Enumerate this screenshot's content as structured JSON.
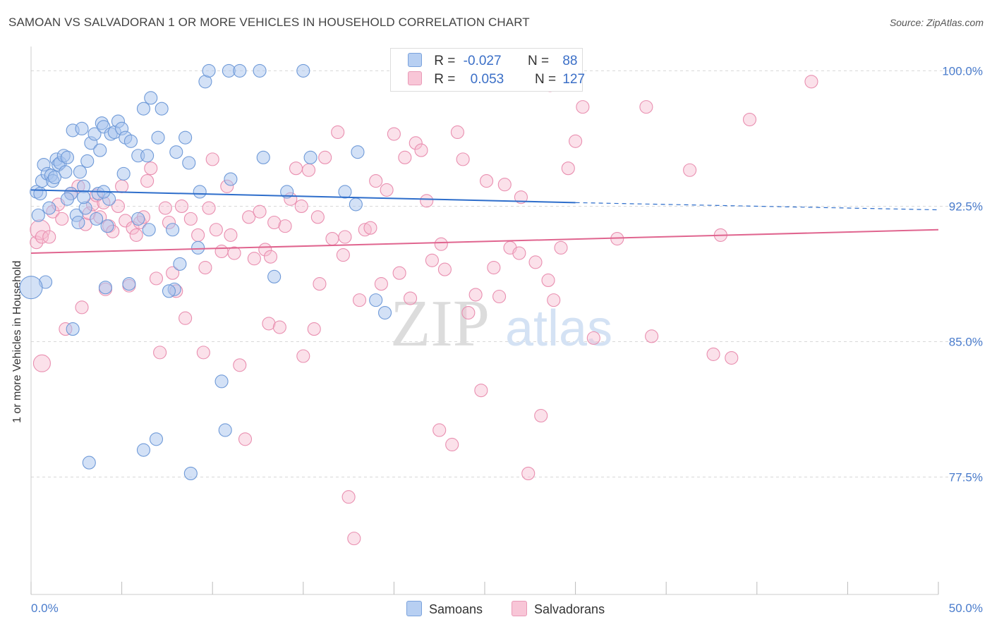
{
  "header": {
    "title": "SAMOAN VS SALVADORAN 1 OR MORE VEHICLES IN HOUSEHOLD CORRELATION CHART",
    "source": "Source: ZipAtlas.com"
  },
  "watermark": {
    "zip": "ZIP",
    "atlas": "atlas"
  },
  "legend": {
    "rows": [
      {
        "r_label": "R =",
        "r_value": "-0.027",
        "n_label": "N =",
        "n_value": "88"
      },
      {
        "r_label": "R =",
        "r_value": "0.053",
        "n_label": "N =",
        "n_value": "127"
      }
    ]
  },
  "bottom_legend": {
    "items": [
      "Samoans",
      "Salvadorans"
    ]
  },
  "colors": {
    "samoan_fill": "#a8c4ee",
    "samoan_stroke": "#6f9ad8",
    "samoan_line": "#2e6ecb",
    "salvadoran_fill": "#f6bcd0",
    "salvadoran_stroke": "#e98fb0",
    "salvadoran_line": "#e0658f",
    "tick_label": "#4a7ccc",
    "grid": "#d8d8d8"
  },
  "chart_data": {
    "type": "scatter",
    "title": "SAMOAN VS SALVADORAN 1 OR MORE VEHICLES IN HOUSEHOLD CORRELATION CHART",
    "xlabel": "",
    "ylabel": "1 or more Vehicles in Household",
    "xlim": [
      0,
      50
    ],
    "ylim": [
      71,
      101.5
    ],
    "x_tick_labels": [
      "0.0%",
      "50.0%"
    ],
    "y_ticks": [
      77.5,
      85.0,
      92.5,
      100.0
    ],
    "y_tick_labels": [
      "77.5%",
      "85.0%",
      "92.5%",
      "100.0%"
    ],
    "grid": true,
    "legend_position": "top-center",
    "series": [
      {
        "name": "Samoans",
        "r": -0.027,
        "n": 88,
        "trend": {
          "x0": 0,
          "y0": 93.4,
          "x1": 30,
          "y1": 92.7,
          "dashed_to_x": 50,
          "dashed_to_y": 92.3
        },
        "points": [
          [
            0.3,
            93.3,
            9
          ],
          [
            0.4,
            92.0,
            9
          ],
          [
            0.5,
            93.2,
            9
          ],
          [
            0.6,
            93.9,
            9
          ],
          [
            0.7,
            94.8,
            9
          ],
          [
            0.9,
            94.3,
            9
          ],
          [
            1.0,
            92.4,
            9
          ],
          [
            1.1,
            94.2,
            9
          ],
          [
            1.2,
            93.9,
            9
          ],
          [
            1.4,
            95.1,
            9
          ],
          [
            1.5,
            94.8,
            9
          ],
          [
            1.6,
            94.9,
            9
          ],
          [
            1.8,
            95.3,
            9
          ],
          [
            1.9,
            94.4,
            9
          ],
          [
            2.0,
            95.2,
            9
          ],
          [
            2.2,
            93.2,
            9
          ],
          [
            2.3,
            96.7,
            9
          ],
          [
            2.5,
            92.0,
            9
          ],
          [
            2.7,
            94.4,
            9
          ],
          [
            2.8,
            96.8,
            9
          ],
          [
            2.9,
            93.6,
            9
          ],
          [
            3.1,
            95.0,
            9
          ],
          [
            3.3,
            96.0,
            9
          ],
          [
            3.5,
            96.5,
            9
          ],
          [
            3.7,
            93.2,
            9
          ],
          [
            3.9,
            97.1,
            9
          ],
          [
            4.0,
            96.9,
            9
          ],
          [
            4.3,
            92.9,
            9
          ],
          [
            4.4,
            96.5,
            9
          ],
          [
            4.6,
            96.6,
            9
          ],
          [
            4.8,
            97.2,
            9
          ],
          [
            5.0,
            96.8,
            9
          ],
          [
            5.1,
            94.3,
            9
          ],
          [
            5.2,
            96.3,
            9
          ],
          [
            5.5,
            96.1,
            9
          ],
          [
            5.9,
            95.3,
            9
          ],
          [
            6.2,
            97.9,
            9
          ],
          [
            6.6,
            98.5,
            9
          ],
          [
            7.0,
            96.3,
            9
          ],
          [
            7.2,
            97.9,
            9
          ],
          [
            7.8,
            91.2,
            9
          ],
          [
            8.0,
            95.5,
            9
          ],
          [
            8.5,
            96.3,
            9
          ],
          [
            9.3,
            93.3,
            9
          ],
          [
            9.6,
            99.4,
            9
          ],
          [
            9.8,
            100.0,
            9
          ],
          [
            10.9,
            100.0,
            9
          ],
          [
            11.5,
            100.0,
            9
          ],
          [
            12.6,
            100.0,
            9
          ],
          [
            12.8,
            95.2,
            9
          ],
          [
            13.4,
            88.6,
            9
          ],
          [
            14.1,
            93.3,
            9
          ],
          [
            15.0,
            100.0,
            9
          ],
          [
            17.3,
            93.3,
            9
          ],
          [
            17.9,
            92.6,
            9
          ],
          [
            18.0,
            95.5,
            9
          ],
          [
            19.5,
            86.6,
            9
          ],
          [
            19.0,
            87.3,
            9
          ],
          [
            3.0,
            92.4,
            9
          ],
          [
            4.2,
            91.4,
            9
          ],
          [
            5.4,
            88.2,
            9
          ],
          [
            6.5,
            91.2,
            9
          ],
          [
            7.9,
            87.9,
            9
          ],
          [
            8.2,
            89.3,
            9
          ],
          [
            9.2,
            90.2,
            9
          ],
          [
            7.6,
            87.8,
            9
          ],
          [
            4.1,
            88.0,
            9
          ],
          [
            10.5,
            82.8,
            9
          ],
          [
            10.7,
            80.1,
            9
          ],
          [
            6.9,
            79.6,
            9
          ],
          [
            6.2,
            79.0,
            9
          ],
          [
            3.2,
            78.3,
            9
          ],
          [
            8.8,
            77.7,
            9
          ],
          [
            2.3,
            85.7,
            9
          ],
          [
            5.9,
            91.8,
            9
          ],
          [
            11.0,
            94.0,
            9
          ],
          [
            2.0,
            92.9,
            9
          ],
          [
            0.8,
            88.3,
            9
          ],
          [
            0.0,
            88.0,
            16
          ],
          [
            1.3,
            94.1,
            9
          ],
          [
            2.9,
            93.0,
            9
          ],
          [
            3.8,
            95.6,
            9
          ],
          [
            6.4,
            95.3,
            9
          ],
          [
            8.7,
            94.9,
            9
          ],
          [
            4.0,
            93.3,
            9
          ],
          [
            2.6,
            91.6,
            9
          ],
          [
            3.6,
            91.8,
            9
          ],
          [
            15.4,
            95.2,
            9
          ]
        ]
      },
      {
        "name": "Salvadorans",
        "r": 0.053,
        "n": 127,
        "trend": {
          "x0": 0,
          "y0": 89.9,
          "x1": 50,
          "y1": 91.2
        },
        "points": [
          [
            0.3,
            90.5,
            9
          ],
          [
            0.5,
            91.2,
            14
          ],
          [
            0.6,
            90.8,
            9
          ],
          [
            1.0,
            90.8,
            9
          ],
          [
            1.2,
            92.2,
            9
          ],
          [
            1.5,
            92.6,
            9
          ],
          [
            1.7,
            91.8,
            9
          ],
          [
            1.9,
            85.7,
            9
          ],
          [
            2.2,
            93.2,
            9
          ],
          [
            2.6,
            93.6,
            9
          ],
          [
            2.8,
            86.9,
            9
          ],
          [
            3.0,
            91.5,
            9
          ],
          [
            3.2,
            92.1,
            9
          ],
          [
            3.4,
            92.6,
            9
          ],
          [
            3.6,
            93.1,
            9
          ],
          [
            3.8,
            91.9,
            9
          ],
          [
            4.0,
            92.7,
            9
          ],
          [
            4.3,
            91.4,
            9
          ],
          [
            4.5,
            91.1,
            9
          ],
          [
            4.8,
            92.5,
            9
          ],
          [
            5.0,
            93.6,
            9
          ],
          [
            5.2,
            91.7,
            9
          ],
          [
            5.4,
            88.1,
            9
          ],
          [
            5.6,
            91.3,
            9
          ],
          [
            5.8,
            90.9,
            9
          ],
          [
            6.0,
            91.6,
            9
          ],
          [
            6.2,
            91.9,
            9
          ],
          [
            6.4,
            93.9,
            9
          ],
          [
            6.6,
            94.6,
            9
          ],
          [
            6.9,
            88.5,
            9
          ],
          [
            7.1,
            84.4,
            9
          ],
          [
            7.4,
            92.4,
            9
          ],
          [
            7.6,
            91.6,
            9
          ],
          [
            7.8,
            88.8,
            9
          ],
          [
            8.0,
            87.8,
            9
          ],
          [
            8.3,
            92.5,
            9
          ],
          [
            8.5,
            86.3,
            9
          ],
          [
            8.8,
            91.8,
            9
          ],
          [
            9.2,
            90.9,
            9
          ],
          [
            9.5,
            84.4,
            9
          ],
          [
            9.8,
            92.4,
            9
          ],
          [
            10.0,
            95.1,
            9
          ],
          [
            10.2,
            91.2,
            9
          ],
          [
            10.5,
            90.0,
            9
          ],
          [
            10.8,
            93.6,
            9
          ],
          [
            11.0,
            90.9,
            9
          ],
          [
            11.2,
            89.9,
            9
          ],
          [
            11.5,
            83.7,
            9
          ],
          [
            11.8,
            79.6,
            9
          ],
          [
            12.0,
            91.9,
            9
          ],
          [
            12.3,
            89.6,
            9
          ],
          [
            12.6,
            92.2,
            9
          ],
          [
            12.9,
            90.1,
            9
          ],
          [
            13.1,
            86.0,
            9
          ],
          [
            13.4,
            91.6,
            9
          ],
          [
            13.7,
            85.8,
            9
          ],
          [
            14.0,
            91.4,
            9
          ],
          [
            14.3,
            92.9,
            9
          ],
          [
            14.6,
            94.6,
            9
          ],
          [
            15.0,
            84.2,
            9
          ],
          [
            15.3,
            94.5,
            9
          ],
          [
            15.6,
            85.7,
            9
          ],
          [
            15.9,
            88.2,
            9
          ],
          [
            16.2,
            95.2,
            9
          ],
          [
            16.6,
            90.7,
            9
          ],
          [
            16.9,
            96.6,
            9
          ],
          [
            17.2,
            89.8,
            9
          ],
          [
            17.5,
            76.4,
            9
          ],
          [
            17.8,
            74.1,
            9
          ],
          [
            18.1,
            87.3,
            9
          ],
          [
            18.4,
            91.2,
            9
          ],
          [
            18.7,
            91.3,
            9
          ],
          [
            19.0,
            93.9,
            9
          ],
          [
            19.3,
            88.2,
            9
          ],
          [
            19.6,
            93.4,
            9
          ],
          [
            20.0,
            96.5,
            9
          ],
          [
            20.3,
            88.8,
            9
          ],
          [
            20.6,
            95.2,
            9
          ],
          [
            20.9,
            87.4,
            9
          ],
          [
            21.2,
            96.0,
            9
          ],
          [
            21.5,
            95.6,
            9
          ],
          [
            21.8,
            92.8,
            9
          ],
          [
            22.1,
            89.5,
            9
          ],
          [
            22.5,
            80.1,
            9
          ],
          [
            22.8,
            89.0,
            9
          ],
          [
            23.2,
            79.3,
            9
          ],
          [
            23.5,
            96.6,
            9
          ],
          [
            23.8,
            95.1,
            9
          ],
          [
            24.1,
            86.6,
            9
          ],
          [
            24.5,
            87.6,
            9
          ],
          [
            24.8,
            82.3,
            9
          ],
          [
            25.1,
            93.9,
            9
          ],
          [
            25.5,
            89.1,
            9
          ],
          [
            25.8,
            87.5,
            9
          ],
          [
            26.1,
            93.7,
            9
          ],
          [
            26.4,
            90.2,
            9
          ],
          [
            26.6,
            99.9,
            9
          ],
          [
            27.0,
            93.0,
            9
          ],
          [
            27.4,
            77.7,
            9
          ],
          [
            27.8,
            89.4,
            9
          ],
          [
            28.1,
            80.9,
            9
          ],
          [
            28.5,
            88.4,
            9
          ],
          [
            28.8,
            87.3,
            9
          ],
          [
            29.2,
            90.2,
            9
          ],
          [
            29.6,
            94.6,
            9
          ],
          [
            30.0,
            96.1,
            9
          ],
          [
            30.4,
            98.0,
            9
          ],
          [
            31.0,
            85.2,
            9
          ],
          [
            32.3,
            90.7,
            9
          ],
          [
            33.9,
            98.0,
            9
          ],
          [
            34.2,
            85.3,
            9
          ],
          [
            36.3,
            94.5,
            9
          ],
          [
            37.6,
            84.3,
            9
          ],
          [
            38.0,
            90.9,
            9
          ],
          [
            38.6,
            84.1,
            9
          ],
          [
            39.6,
            97.3,
            9
          ],
          [
            43.0,
            99.4,
            9
          ],
          [
            0.6,
            83.8,
            12
          ],
          [
            4.1,
            87.9,
            9
          ],
          [
            22.6,
            90.4,
            9
          ],
          [
            26.9,
            89.9,
            9
          ],
          [
            15.8,
            91.9,
            9
          ],
          [
            13.2,
            89.7,
            9
          ],
          [
            9.6,
            89.1,
            9
          ],
          [
            17.3,
            90.8,
            9
          ],
          [
            28.6,
            99.2,
            9
          ],
          [
            14.9,
            92.5,
            9
          ]
        ]
      }
    ]
  }
}
